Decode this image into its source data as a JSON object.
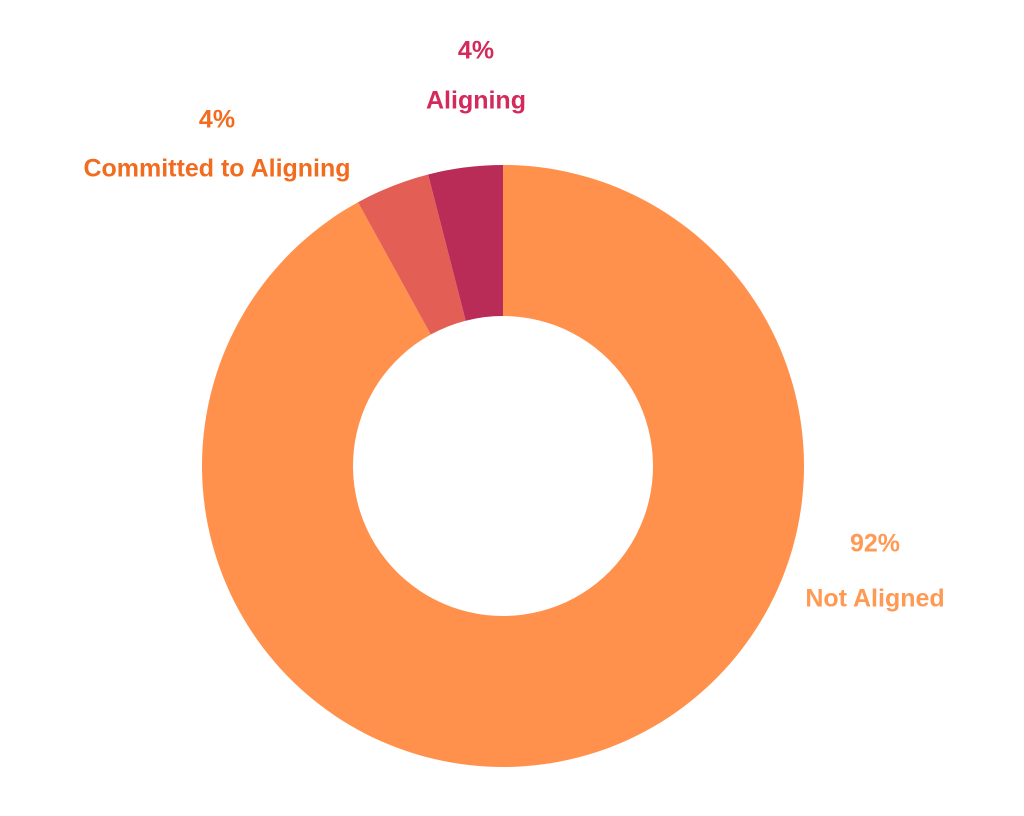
{
  "chart_data": {
    "type": "donut",
    "categories": [
      "Not Aligned",
      "Committed to Aligning",
      "Aligning"
    ],
    "values": [
      92,
      4,
      4
    ],
    "value_labels": [
      "92%",
      "4%",
      "4%"
    ],
    "colors": [
      "#ff914d",
      "#e35f55",
      "#b82c57"
    ]
  }
}
